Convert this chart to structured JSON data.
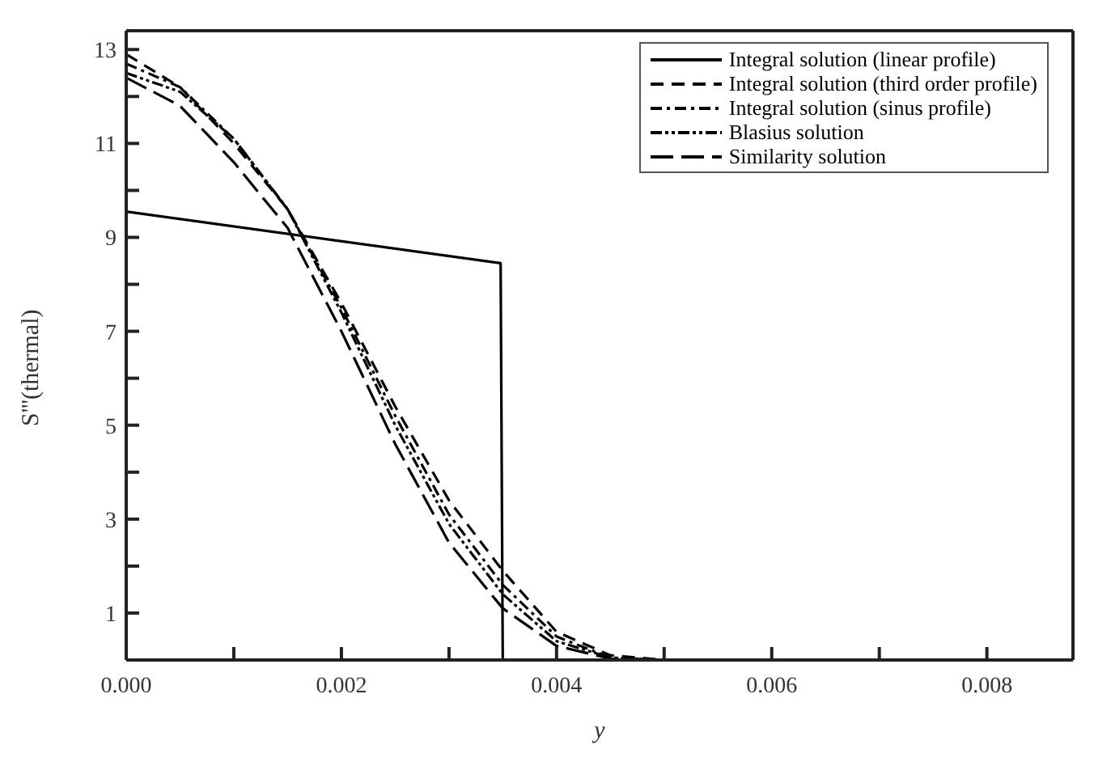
{
  "chart_data": {
    "type": "line",
    "xlabel": "y",
    "ylabel": "S'''(thermal)",
    "xlim": [
      0,
      0.0088
    ],
    "ylim": [
      0,
      13.4
    ],
    "xticks": [
      {
        "value": 0,
        "label": "0.000"
      },
      {
        "value": 0.001,
        "label": null
      },
      {
        "value": 0.002,
        "label": "0.002"
      },
      {
        "value": 0.003,
        "label": null
      },
      {
        "value": 0.004,
        "label": "0.004"
      },
      {
        "value": 0.005,
        "label": null
      },
      {
        "value": 0.006,
        "label": "0.006"
      },
      {
        "value": 0.007,
        "label": null
      },
      {
        "value": 0.008,
        "label": "0.008"
      }
    ],
    "yticks": [
      1,
      {
        "value": 2,
        "label": null
      },
      3,
      {
        "value": 4,
        "label": null
      },
      5,
      {
        "value": 6,
        "label": null
      },
      7,
      {
        "value": 8,
        "label": null
      },
      9,
      {
        "value": 10,
        "label": null
      },
      11,
      {
        "value": 12,
        "label": null
      },
      13
    ],
    "grid": false,
    "legend": "top right",
    "marker": "none",
    "series": [
      {
        "name": "Integral solution (linear profile)",
        "color": "#000000",
        "line_style": "solid",
        "x": [
          0,
          0.00348,
          0.0035
        ],
        "values": [
          9.55,
          8.45,
          0
        ]
      },
      {
        "name": "Integral solution (third order profile)",
        "color": "#000000",
        "line_style": "dashed",
        "x": [
          0,
          0.0005,
          0.001,
          0.0015,
          0.002,
          0.0025,
          0.003,
          0.0035,
          0.004,
          0.0045,
          0.005
        ],
        "values": [
          12.9,
          12.2,
          11.0,
          9.6,
          7.6,
          5.4,
          3.4,
          1.9,
          0.6,
          0.1,
          0
        ]
      },
      {
        "name": "Integral solution (sinus profile)",
        "color": "#000000",
        "line_style": "dashdot",
        "x": [
          0,
          0.0005,
          0.001,
          0.0015,
          0.002,
          0.0025,
          0.003,
          0.0035,
          0.004,
          0.0045,
          0.005
        ],
        "values": [
          12.7,
          12.2,
          11.1,
          9.6,
          7.5,
          5.2,
          3.1,
          1.6,
          0.5,
          0.05,
          0
        ]
      },
      {
        "name": "Blasius solution",
        "color": "#000000",
        "line_style": "dashdotdot",
        "x": [
          0,
          0.0005,
          0.001,
          0.0015,
          0.002,
          0.0025,
          0.003,
          0.0035,
          0.004,
          0.0045,
          0.005
        ],
        "values": [
          12.5,
          12.1,
          11.1,
          9.6,
          7.4,
          5.0,
          2.9,
          1.4,
          0.4,
          0.05,
          0
        ]
      },
      {
        "name": "Similarity solution",
        "color": "#000000",
        "line_style": "longdash",
        "x": [
          0,
          0.0005,
          0.001,
          0.0015,
          0.002,
          0.0025,
          0.003,
          0.0035,
          0.004,
          0.0045,
          0.005
        ],
        "values": [
          12.4,
          11.8,
          10.6,
          9.2,
          7.0,
          4.6,
          2.5,
          1.1,
          0.3,
          0.03,
          0
        ]
      }
    ]
  }
}
